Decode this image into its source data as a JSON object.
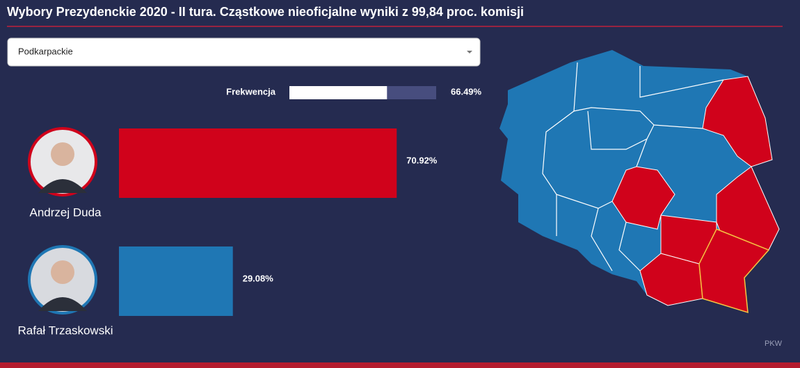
{
  "chart_data": {
    "type": "bar",
    "title": "Wybory Prezydenckie 2020 - II tura. Cząstkowe nieoficjalne wyniki z 99,84 proc. komisji",
    "categories": [
      "Andrzej Duda",
      "Rafał Trzaskowski"
    ],
    "values": [
      70.92,
      29.08
    ],
    "value_labels": [
      "70.92%",
      "29.08%"
    ],
    "colors": [
      "#d0021b",
      "#1f77b4"
    ],
    "xlim": [
      0,
      100
    ]
  },
  "region_select": "Podkarpackie",
  "turnout": {
    "label": "Frekwencja",
    "value": 66.49,
    "value_label": "66.49%",
    "xlim": [
      0,
      100
    ]
  },
  "source": "PKW"
}
